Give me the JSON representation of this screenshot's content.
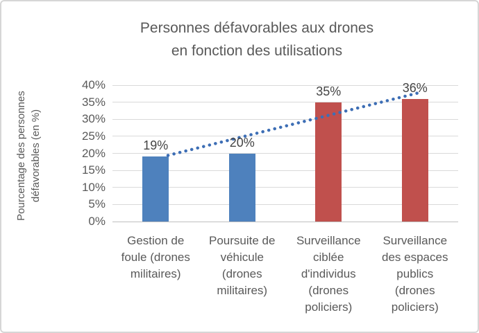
{
  "chart_data": {
    "type": "bar",
    "title": "Personnes défavorables aux drones en fonction des utilisations",
    "title_lines": [
      "Personnes défavorables aux drones",
      "en fonction des utilisations"
    ],
    "ylabel": "Pourcentage des personnes défavorables (en %)",
    "ylabel_lines": "Pourcentage des personnes\ndéfavorables (en %)",
    "categories": [
      "Gestion de foule (drones militaires)",
      "Poursuite de véhicule (drones militaires)",
      "Surveillance ciblée d'individus (drones policiers)",
      "Surveillance des espaces publics (drones policiers)"
    ],
    "category_display": [
      "Gestion de\nfoule (drones\nmilitaires)",
      "Poursuite de\nvéhicule\n(drones\nmilitaires)",
      "Surveillance\nciblée\nd'individus\n(drones\npoliciers)",
      "Surveillance\ndes espaces\npublics\n(drones\npoliciers)"
    ],
    "values": [
      19,
      20,
      35,
      36
    ],
    "data_labels": [
      "19%",
      "20%",
      "35%",
      "36%"
    ],
    "bar_colors": [
      "#4E81BD",
      "#4E81BD",
      "#C0504D",
      "#C0504D"
    ],
    "ylim": [
      0,
      40
    ],
    "ytick_step": 5,
    "ytick_labels": [
      "40%",
      "35%",
      "30%",
      "25%",
      "20%",
      "15%",
      "10%",
      "5%",
      "0%"
    ],
    "grid": true,
    "legend": "none",
    "trendline": {
      "type": "linear",
      "style": "dotted",
      "color": "#3D6EB5",
      "from_value": 19.4,
      "to_value": 37.9
    },
    "colors": {
      "grid": "#D9D9D9",
      "axis": "#BFBFBF",
      "text": "#595959",
      "data_label_text": "#444444",
      "frame_border": "#D6D6D6"
    }
  }
}
